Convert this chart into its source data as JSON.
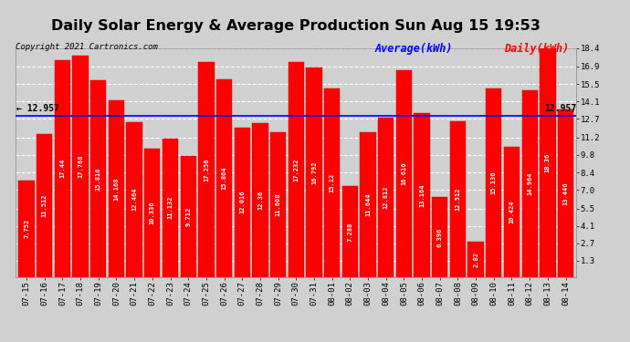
{
  "title": "Daily Solar Energy & Average Production Sun Aug 15 19:53",
  "copyright": "Copyright 2021 Cartronics.com",
  "average_label": "Average(kWh)",
  "daily_label": "Daily(kWh)",
  "average_value": 12.957,
  "categories": [
    "07-15",
    "07-16",
    "07-17",
    "07-18",
    "07-19",
    "07-20",
    "07-21",
    "07-22",
    "07-23",
    "07-24",
    "07-25",
    "07-26",
    "07-27",
    "07-28",
    "07-29",
    "07-30",
    "07-31",
    "08-01",
    "08-02",
    "08-03",
    "08-04",
    "08-05",
    "08-06",
    "08-07",
    "08-08",
    "08-09",
    "08-10",
    "08-11",
    "08-12",
    "08-13",
    "08-14"
  ],
  "values": [
    7.752,
    11.512,
    17.44,
    17.768,
    15.816,
    14.168,
    12.464,
    10.336,
    11.132,
    9.712,
    17.256,
    15.864,
    12.016,
    12.36,
    11.608,
    17.232,
    16.792,
    15.12,
    7.288,
    11.644,
    12.812,
    16.616,
    13.164,
    6.396,
    12.512,
    2.82,
    15.136,
    10.424,
    14.964,
    18.36,
    13.446
  ],
  "bar_color": "#ff0000",
  "bar_edge_color": "#bb0000",
  "average_line_color": "#0000ff",
  "background_color": "#d0d0d0",
  "plot_bg_color": "#d0d0d0",
  "ylim_min": 0,
  "ylim_max": 18.4,
  "yticks": [
    1.3,
    2.7,
    4.1,
    5.5,
    7.0,
    8.4,
    9.8,
    11.2,
    12.7,
    14.1,
    15.5,
    16.9,
    18.4
  ],
  "grid_color": "#ffffff",
  "title_fontsize": 11.5,
  "copyright_fontsize": 6.5,
  "tick_fontsize": 6.5,
  "value_fontsize": 5.0,
  "avg_side_fontsize": 7.0,
  "legend_fontsize": 8.5
}
